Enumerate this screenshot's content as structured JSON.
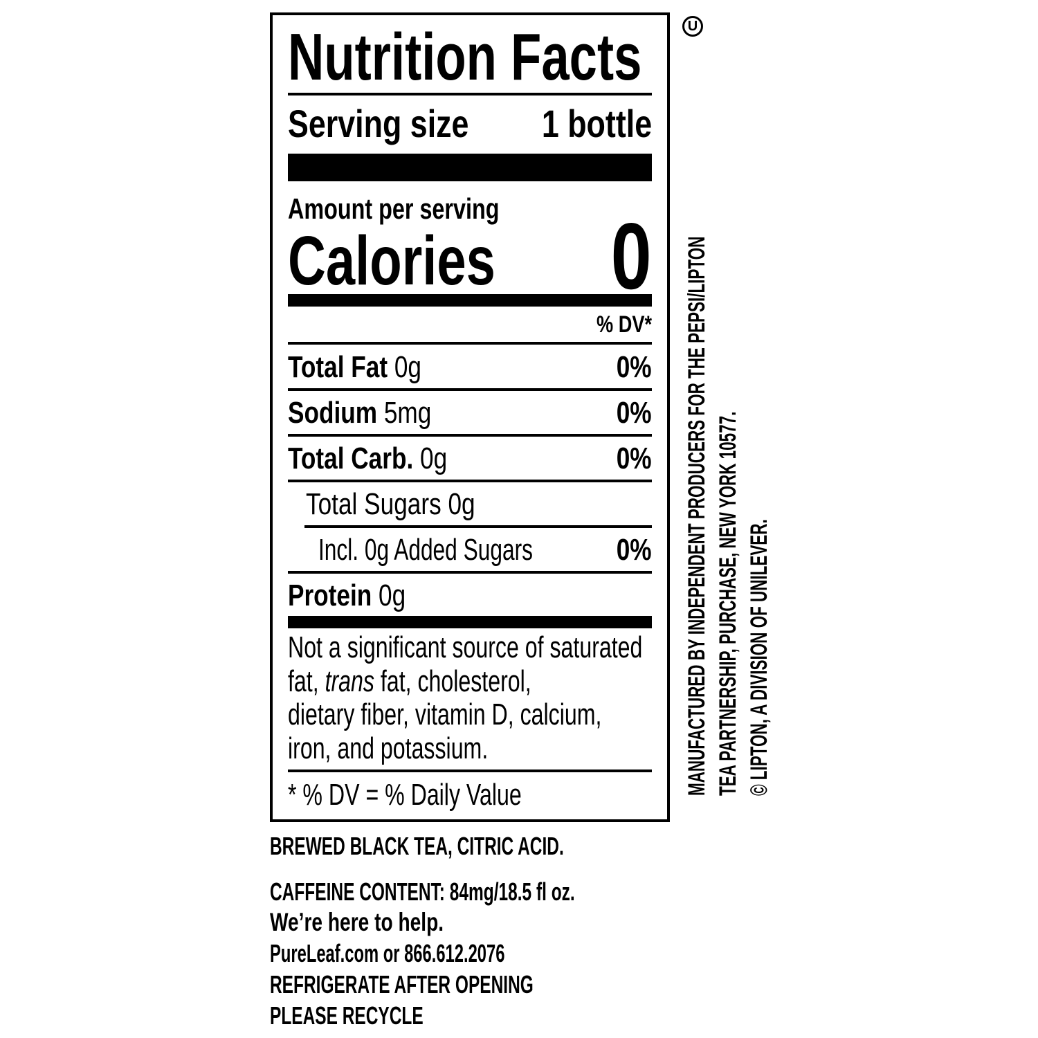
{
  "label": {
    "title": "Nutrition Facts",
    "serving_size_label": "Serving size",
    "serving_size_value": "1 bottle",
    "amount_per_serving": "Amount per serving",
    "calories_label": "Calories",
    "calories_value": "0",
    "dv_header": "% DV*",
    "rows": [
      {
        "label": "Total Fat",
        "amount": "0g",
        "dv": "0%"
      },
      {
        "label": "Sodium",
        "amount": "5mg",
        "dv": "0%"
      },
      {
        "label": "Total Carb.",
        "amount": "0g",
        "dv": "0%"
      },
      {
        "label": "Total Sugars 0g",
        "amount": "",
        "dv": ""
      },
      {
        "label": "Incl. 0g Added Sugars",
        "amount": "",
        "dv": "0%"
      },
      {
        "label": "Protein",
        "amount": "0g",
        "dv": ""
      }
    ],
    "footnote_line1": "Not a significant source of saturated",
    "footnote_line2_a": "fat, ",
    "footnote_line2_italic": "trans",
    "footnote_line2_b": " fat, cholesterol,",
    "footnote_line3": "dietary fiber, vitamin D, calcium,",
    "footnote_line4": "iron, and potassium.",
    "dv_note": "* % DV = % Daily Value"
  },
  "kosher_mark": "U",
  "ingredients": "BREWED BLACK TEA, CITRIC ACID.",
  "caffeine": "CAFFEINE CONTENT: 84mg/18.5 fl oz.",
  "help_heading": "We’re here to help.",
  "contact": "PureLeaf.com or 866.612.2076",
  "refrigerate": "REFRIGERATE AFTER OPENING",
  "recycle": "PLEASE RECYCLE",
  "manufacturer": {
    "line1": "MANUFACTURED BY INDEPENDENT PRODUCERS FOR THE PEPSI/LIPTON",
    "line2": "TEA PARTNERSHIP, PURCHASE, NEW YORK 10577.",
    "line3": "© LIPTON, A DIVISION OF UNILEVER."
  }
}
